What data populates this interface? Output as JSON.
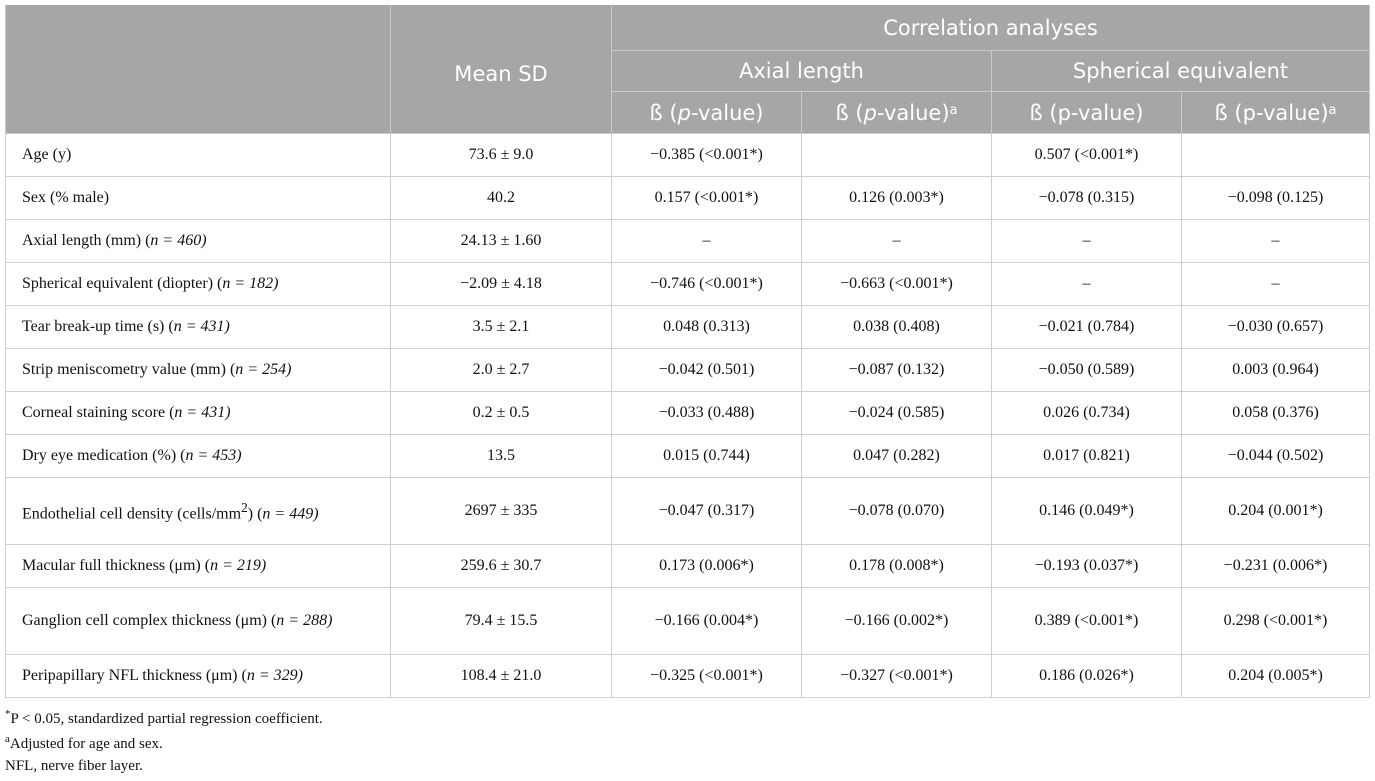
{
  "header": {
    "mean_sd": "Mean SD",
    "correlation_analyses": "Correlation analyses",
    "axial_length": "Axial length",
    "spherical_equivalent": "Spherical equivalent",
    "beta_p_italic_pre": "ß (",
    "beta_p_italic_p": "p",
    "beta_p_italic_post": "-value)",
    "beta_p_plain": "ß (p-value)",
    "superscript_a": "a"
  },
  "rows": [
    {
      "variable": "Age (y)",
      "n_label": "",
      "mean": "73.6 ± 9.0",
      "al_b": "−0.385 (<0.001*)",
      "al_b_adj": "",
      "se_b": "0.507 (<0.001*)",
      "se_b_adj": ""
    },
    {
      "variable": "Sex (% male)",
      "n_label": "",
      "mean": "40.2",
      "al_b": "0.157 (<0.001*)",
      "al_b_adj": "0.126 (0.003*)",
      "se_b": "−0.078 (0.315)",
      "se_b_adj": "−0.098 (0.125)"
    },
    {
      "variable": "Axial length (mm) (",
      "n_label": "n = 460)",
      "mean": "24.13 ± 1.60",
      "al_b": "–",
      "al_b_adj": "–",
      "se_b": "–",
      "se_b_adj": "–"
    },
    {
      "variable": "Spherical equivalent (diopter) (",
      "n_label": "n = 182)",
      "mean": "−2.09 ± 4.18",
      "al_b": "−0.746 (<0.001*)",
      "al_b_adj": "−0.663 (<0.001*)",
      "se_b": "–",
      "se_b_adj": "–"
    },
    {
      "variable": "Tear break-up time (s) (",
      "n_label": "n = 431)",
      "mean": "3.5 ± 2.1",
      "al_b": "0.048 (0.313)",
      "al_b_adj": "0.038 (0.408)",
      "se_b": "−0.021 (0.784)",
      "se_b_adj": "−0.030 (0.657)"
    },
    {
      "variable": "Strip meniscometry value (mm) (",
      "n_label": "n = 254)",
      "mean": "2.0 ± 2.7",
      "al_b": "−0.042 (0.501)",
      "al_b_adj": "−0.087 (0.132)",
      "se_b": "−0.050 (0.589)",
      "se_b_adj": "0.003 (0.964)"
    },
    {
      "variable": "Corneal staining score (",
      "n_label": "n = 431)",
      "mean": "0.2 ± 0.5",
      "al_b": "−0.033 (0.488)",
      "al_b_adj": "−0.024 (0.585)",
      "se_b": "0.026 (0.734)",
      "se_b_adj": "0.058 (0.376)"
    },
    {
      "variable": "Dry eye medication (%) (",
      "n_label": "n = 453)",
      "mean": "13.5",
      "al_b": "0.015 (0.744)",
      "al_b_adj": "0.047 (0.282)",
      "se_b": "0.017 (0.821)",
      "se_b_adj": "−0.044 (0.502)"
    },
    {
      "variable": "Endothelial cell density (cells/mm",
      "sup": "2",
      "variable_after": ") (",
      "n_label": "n = 449)",
      "mean": "2697 ± 335",
      "al_b": "−0.047 (0.317)",
      "al_b_adj": "−0.078 (0.070)",
      "se_b": "0.146 (0.049*)",
      "se_b_adj": "0.204 (0.001*)"
    },
    {
      "variable": "Macular full thickness (μm) (",
      "n_label": "n = 219)",
      "mean": "259.6 ± 30.7",
      "al_b": "0.173 (0.006*)",
      "al_b_adj": "0.178 (0.008*)",
      "se_b": "−0.193 (0.037*)",
      "se_b_adj": "−0.231 (0.006*)"
    },
    {
      "variable": "Ganglion cell complex thickness (μm) (",
      "n_label": "n = 288)",
      "mean": "79.4 ± 15.5",
      "al_b": "−0.166 (0.004*)",
      "al_b_adj": "−0.166 (0.002*)",
      "se_b": "0.389 (<0.001*)",
      "se_b_adj": "0.298 (<0.001*)"
    },
    {
      "variable": "Peripapillary NFL thickness (μm) (",
      "n_label": "n = 329)",
      "mean": "108.4 ± 21.0",
      "al_b": "−0.325 (<0.001*)",
      "al_b_adj": "−0.327 (<0.001*)",
      "se_b": "0.186 (0.026*)",
      "se_b_adj": "0.204 (0.005*)"
    }
  ],
  "footnotes": {
    "star_sym": "*",
    "star_text": "P < 0.05, standardized partial regression coefficient.",
    "a_sym": "a",
    "a_text": "Adjusted for age and sex.",
    "nfl": "NFL, nerve fiber layer."
  }
}
